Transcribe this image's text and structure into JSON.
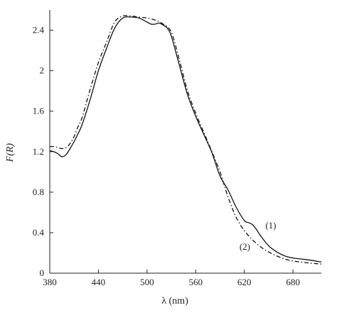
{
  "chart_data": {
    "type": "line",
    "title": "",
    "xlabel": "λ (nm)",
    "ylabel": "F(R)",
    "xlim": [
      380,
      715
    ],
    "ylim": [
      0,
      2.6
    ],
    "grid": false,
    "x_ticks": [
      380,
      440,
      500,
      560,
      620,
      680
    ],
    "x_tick_labels": [
      "380",
      "440",
      "500",
      "560",
      "620",
      "680"
    ],
    "y_ticks": [
      0,
      0.4,
      0.8,
      1.2,
      1.6,
      2.0,
      2.4
    ],
    "y_tick_labels": [
      "0",
      "0.4",
      "0.8",
      "1.2",
      "1.6",
      "2",
      "2.4"
    ],
    "series": [
      {
        "name": "(1)",
        "style": "solid",
        "color": "#111111",
        "x": [
          380,
          385,
          390,
          395,
          400,
          405,
          410,
          415,
          420,
          430,
          440,
          450,
          460,
          470,
          480,
          490,
          500,
          505,
          510,
          515,
          520,
          525,
          530,
          540,
          550,
          560,
          570,
          580,
          590,
          600,
          610,
          620,
          625,
          630,
          635,
          640,
          650,
          660,
          670,
          680,
          690,
          700,
          715
        ],
        "y": [
          1.21,
          1.2,
          1.18,
          1.15,
          1.17,
          1.23,
          1.3,
          1.38,
          1.47,
          1.72,
          2.0,
          2.22,
          2.42,
          2.52,
          2.53,
          2.52,
          2.48,
          2.46,
          2.46,
          2.47,
          2.45,
          2.42,
          2.34,
          2.05,
          1.76,
          1.55,
          1.37,
          1.19,
          0.96,
          0.82,
          0.65,
          0.52,
          0.5,
          0.48,
          0.43,
          0.37,
          0.27,
          0.21,
          0.17,
          0.15,
          0.14,
          0.13,
          0.11
        ]
      },
      {
        "name": "(2)",
        "style": "dash-dot",
        "color": "#111111",
        "x": [
          380,
          385,
          390,
          395,
          400,
          405,
          410,
          415,
          420,
          430,
          440,
          450,
          460,
          470,
          480,
          490,
          500,
          510,
          520,
          530,
          540,
          550,
          560,
          570,
          580,
          590,
          600,
          610,
          620,
          630,
          640,
          650,
          660,
          670,
          680,
          690,
          700,
          715
        ],
        "y": [
          1.25,
          1.25,
          1.24,
          1.23,
          1.24,
          1.28,
          1.35,
          1.45,
          1.54,
          1.82,
          2.08,
          2.28,
          2.48,
          2.54,
          2.54,
          2.53,
          2.52,
          2.5,
          2.46,
          2.38,
          2.1,
          1.8,
          1.58,
          1.39,
          1.2,
          1.0,
          0.75,
          0.55,
          0.42,
          0.33,
          0.26,
          0.21,
          0.17,
          0.14,
          0.12,
          0.11,
          0.1,
          0.09
        ]
      }
    ],
    "annotations": [
      {
        "text": "(1)",
        "series": "(1)",
        "x": 646,
        "y": 0.47
      },
      {
        "text": "(2)",
        "series": "(2)",
        "x": 614,
        "y": 0.26
      }
    ]
  }
}
